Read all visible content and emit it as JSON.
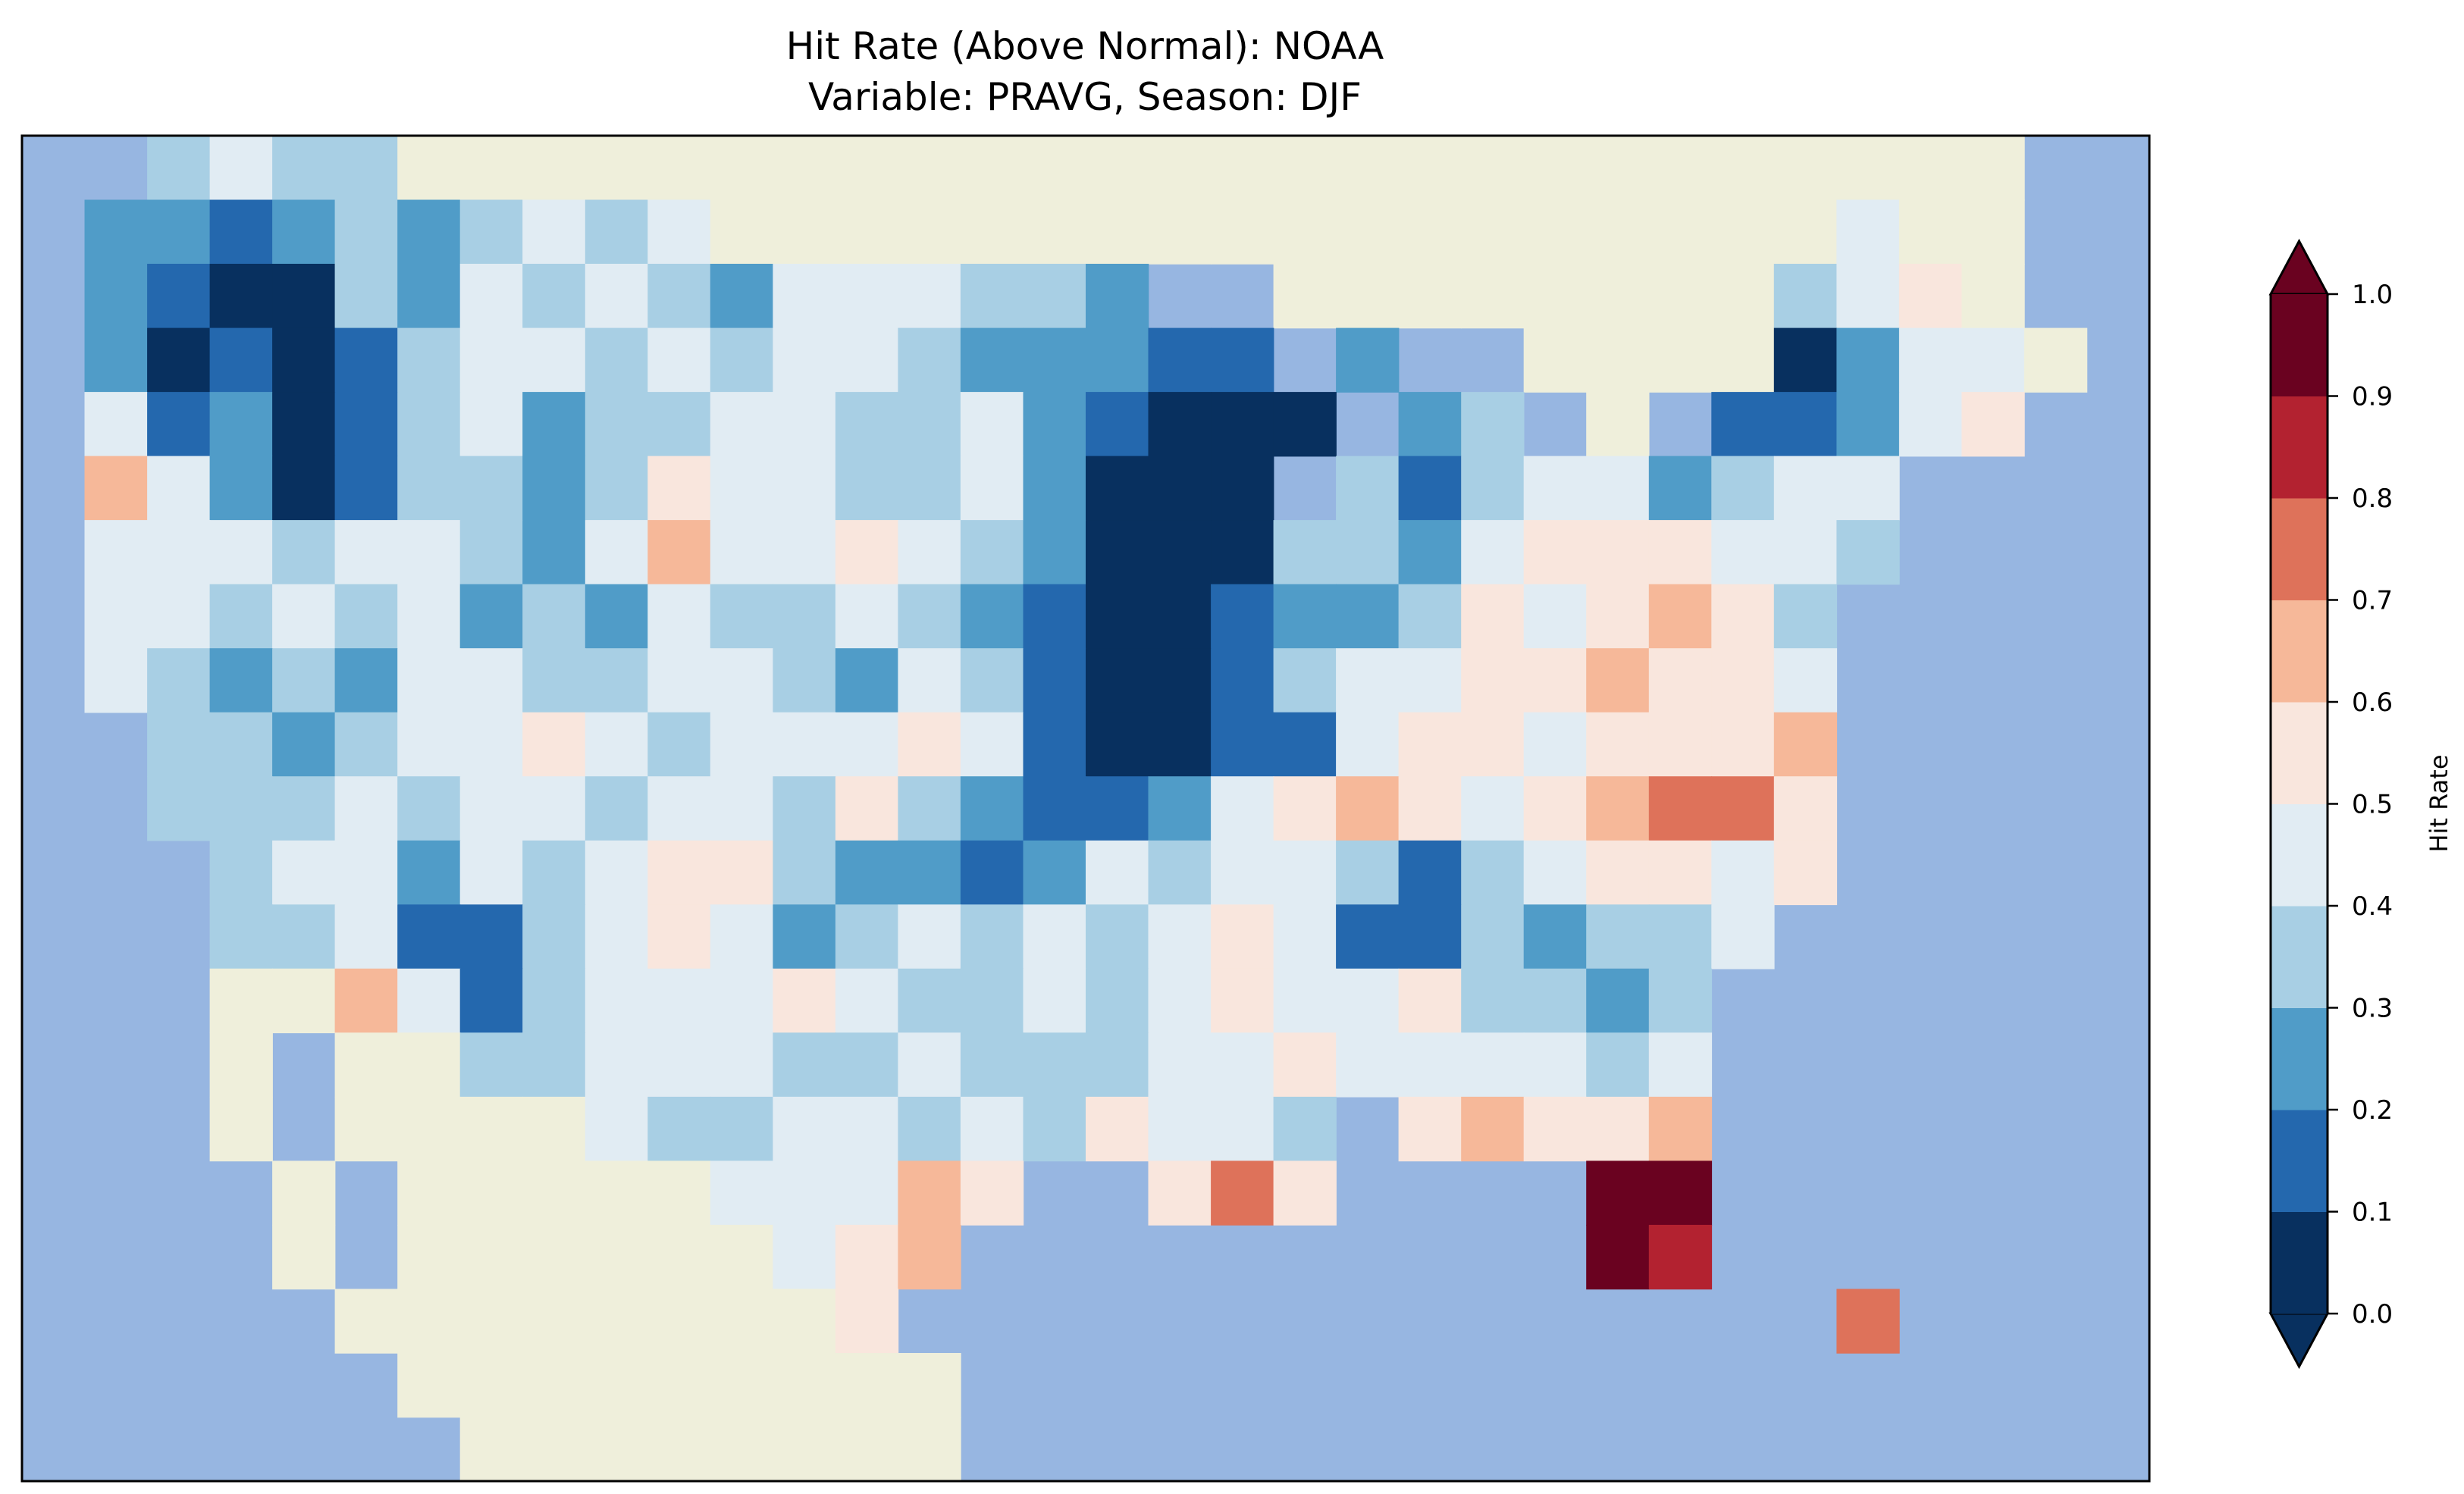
{
  "chart_data": {
    "type": "heatmap",
    "title": [
      "Hit Rate (Above Normal): NOAA",
      "Variable: PRAVG, Season: DJF"
    ],
    "colorbar": {
      "label": "Hit Rate",
      "range": [
        0.0,
        1.0
      ],
      "extend": "both",
      "ticks": [
        "0.0",
        "0.1",
        "0.2",
        "0.3",
        "0.4",
        "0.5",
        "0.6",
        "0.7",
        "0.8",
        "0.9",
        "1.0"
      ],
      "bin_colors": [
        "#08305f",
        "#2468ae",
        "#509cc8",
        "#a8cfe4",
        "#e1ecf3",
        "#f9e6dd",
        "#f6b899",
        "#de725a",
        "#b32230",
        "#6a0220"
      ]
    },
    "background": {
      "ocean": "#97b6e1",
      "land": "#efefdb"
    },
    "grid_legend": {
      "digit": "hit-rate bin (digit/10 to digit/10+0.1)",
      ".": "water",
      "L": "land without data"
    },
    "grid": [
      "..3433LLLLLLLLLLLLLLLLLLLLLLLLLL..",
      ".2212323434LLLLLLLLLLLLLLLLLL4LL..",
      ".21003243432444332..LLLLLLLL345L..",
      ".2010134434344322211.2..LLLL0244L..",
      ".41201342334433421000.23.L.11245...",
      ".6420133235443342000.313442344....",
      ".444344324644543200033245554 3.....",
      ".4434342324334321001223545653.....",
      ".43232443344324310013445565 4......",
      "..3323445434445410011455455 6......",
      "..3334344344353211245654567 5......",
      "...34424345532212434431345 45......",
      "...33411345423434345411323 4.......",
      "...LL6413444543343454453 23........",
      "...L.LL3344433433344544 434........",
      "...L.LLLL433443435443.565 6........",
      "....L.LLLLL44465..575....99.......",
      "....L.LLLLLL456..........98.......",
      ".....LLLLLLLL5...............7......",
      "......LLLLLLLLL...................",
      ".......LLLLLLLL..................."
    ]
  }
}
